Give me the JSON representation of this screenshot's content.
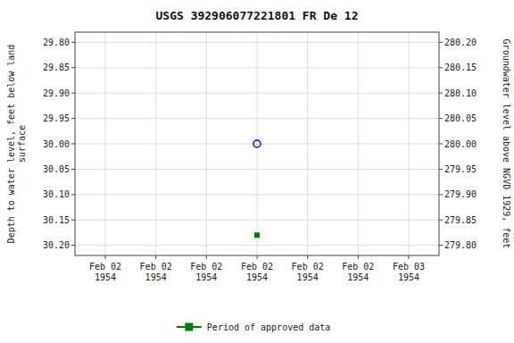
{
  "chart_data": {
    "type": "scatter",
    "title": "USGS 392906077221801 FR De  12",
    "y_label": "Depth to water level, feet below land\nsurface",
    "y2_label": "Groundwater level above NGVD 1929, feet",
    "categories": [
      "Feb 02\n1954",
      "Feb 02\n1954",
      "Feb 02\n1954",
      "Feb 02\n1954",
      "Feb 02\n1954",
      "Feb 02\n1954",
      "Feb 03\n1954"
    ],
    "series": [
      {
        "color": "blue",
        "marker": "circle",
        "line_style": "none",
        "values": [
          null,
          null,
          null,
          30.0,
          null,
          null,
          null
        ]
      },
      {
        "name": "Period of approved data",
        "color": "green",
        "marker": "square",
        "line_style": "solid",
        "values": [
          null,
          null,
          null,
          30.18,
          null,
          null,
          null
        ]
      }
    ],
    "ylim": [
      30.22,
      29.78
    ],
    "yticks": [
      {
        "value": 29.8,
        "label": "29.80"
      },
      {
        "value": 29.85,
        "label": "29.85"
      },
      {
        "value": 29.9,
        "label": "29.90"
      },
      {
        "value": 29.95,
        "label": "29.95"
      },
      {
        "value": 30.0,
        "label": "30.00"
      },
      {
        "value": 30.05,
        "label": "30.05"
      },
      {
        "value": 30.1,
        "label": "30.10"
      },
      {
        "value": 30.15,
        "label": "30.15"
      },
      {
        "value": 30.2,
        "label": "30.20"
      }
    ],
    "y2lim": [
      279.78,
      280.22
    ],
    "y2ticks": [
      {
        "value": 280.2,
        "label": "280.20"
      },
      {
        "value": 280.15,
        "label": "280.15"
      },
      {
        "value": 280.1,
        "label": "280.10"
      },
      {
        "value": 280.05,
        "label": "280.05"
      },
      {
        "value": 280.0,
        "label": "280.00"
      },
      {
        "value": 279.95,
        "label": "279.95"
      },
      {
        "value": 279.9,
        "label": "279.90"
      },
      {
        "value": 279.85,
        "label": "279.85"
      },
      {
        "value": 279.8,
        "label": "279.80"
      }
    ],
    "grid": true,
    "legend": "bottom"
  }
}
